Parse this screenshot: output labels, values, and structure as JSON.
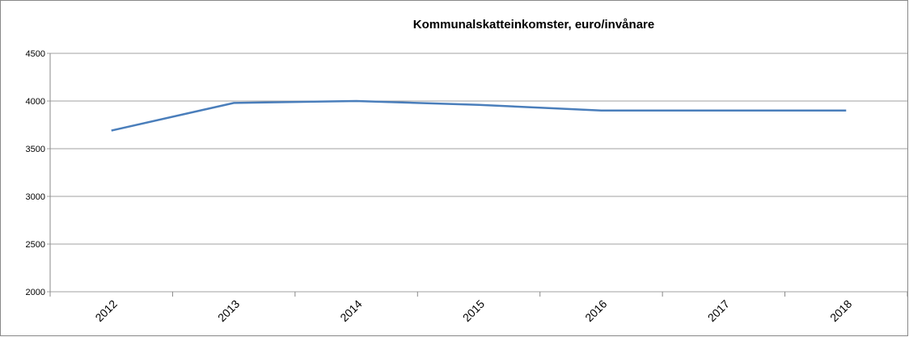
{
  "chart_data": {
    "type": "line",
    "title": "Kommunalskatteinkomster, euro/invånare",
    "categories": [
      "2012",
      "2013",
      "2014",
      "2015",
      "2016",
      "2017",
      "2018"
    ],
    "series": [
      {
        "name": "Kommunalskatteinkomster",
        "color": "#4a7ebb",
        "values": [
          3690,
          3980,
          4000,
          3960,
          3900,
          3900,
          3900
        ]
      }
    ],
    "ylim": [
      2000,
      4500
    ],
    "yticks": [
      2000,
      2500,
      3000,
      3500,
      4000,
      4500
    ],
    "grid": true
  }
}
